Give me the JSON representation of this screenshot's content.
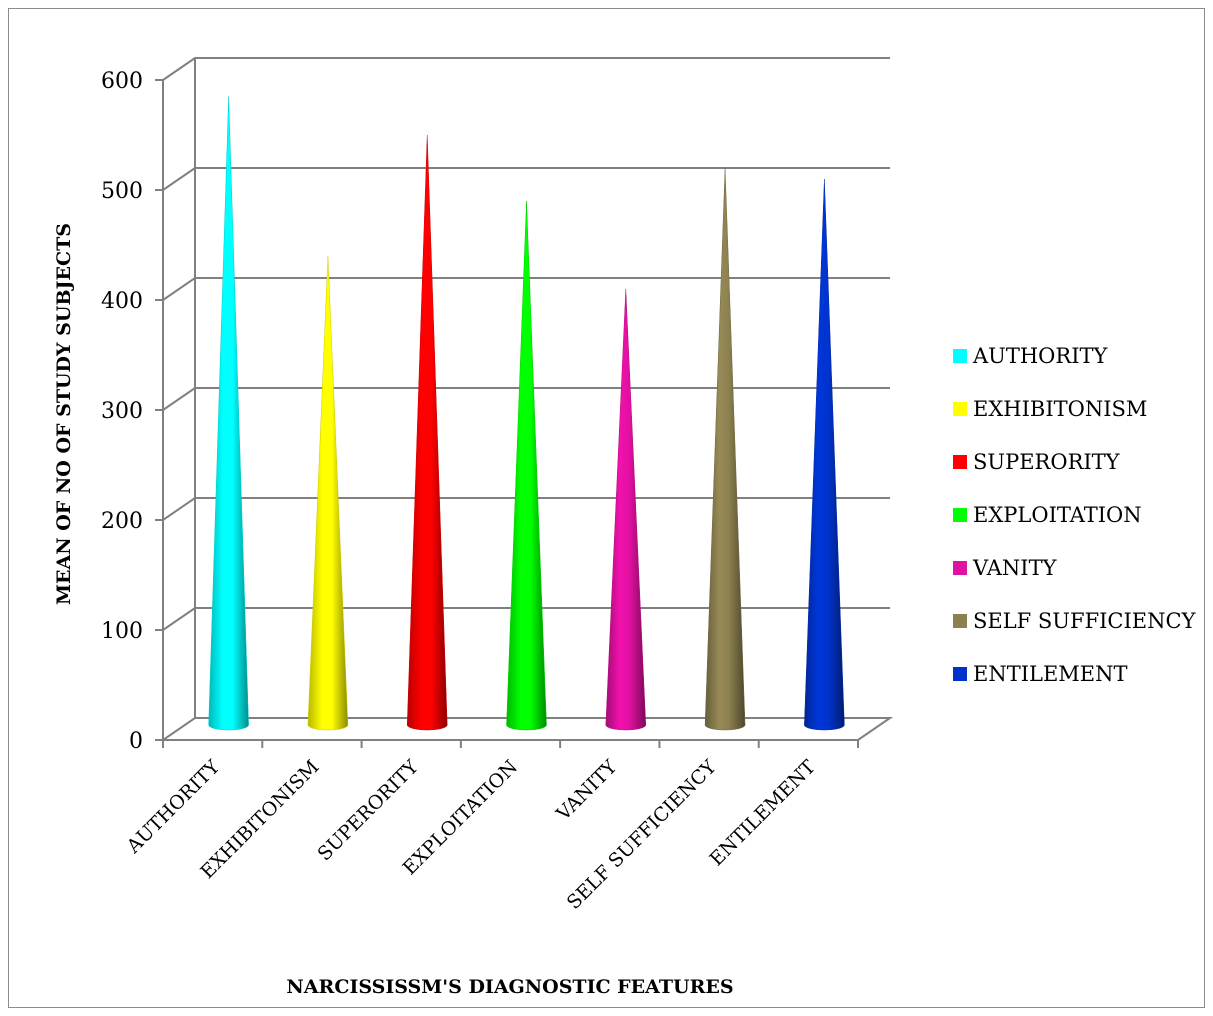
{
  "chart_data": {
    "type": "bar",
    "style": "3d-cone",
    "categories": [
      "AUTHORITY",
      "EXHIBITONISM",
      "SUPERORITY",
      "EXPLOITATION",
      "VANITY",
      "SELF SUFFICIENCY",
      "ENTILEMENT"
    ],
    "values": [
      575,
      430,
      540,
      480,
      400,
      510,
      500
    ],
    "colors": [
      "#00ffff",
      "#ffff00",
      "#ff0000",
      "#00ff00",
      "#e010a0",
      "#8c8050",
      "#0033cc"
    ],
    "xlabel": "NARCISSISSM'S DIAGNOSTIC FEATURES",
    "ylabel": "MEAN OF NO OF STUDY SUBJECTS",
    "ylim": [
      0,
      600
    ],
    "yticks": [
      "0",
      "100",
      "200",
      "300",
      "400",
      "500",
      "600"
    ],
    "grid": true,
    "legend": {
      "position": "right",
      "entries": [
        "AUTHORITY",
        "EXHIBITONISM",
        "SUPERORITY",
        "EXPLOITATION",
        "VANITY",
        "SELF SUFFICIENCY",
        "ENTILEMENT"
      ]
    }
  }
}
